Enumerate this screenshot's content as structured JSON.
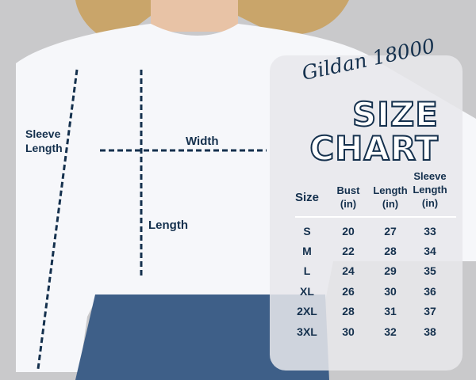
{
  "labels": {
    "sleeve_length": "Sleeve Length",
    "width": "Width",
    "length": "Length"
  },
  "chart": {
    "brand": "Gildan 18000",
    "title_line1": "SIZE",
    "title_line2": "CHART",
    "headers": [
      "Size",
      "Bust (in)",
      "Length (in)",
      "Sleeve Length (in)"
    ],
    "rows": [
      [
        "S",
        "20",
        "27",
        "33"
      ],
      [
        "M",
        "22",
        "28",
        "34"
      ],
      [
        "L",
        "24",
        "29",
        "35"
      ],
      [
        "XL",
        "26",
        "30",
        "36"
      ],
      [
        "2XL",
        "28",
        "31",
        "37"
      ],
      [
        "3XL",
        "30",
        "32",
        "38"
      ]
    ]
  },
  "colors": {
    "text": "#14304d",
    "background": "#c9c9cb",
    "sweatshirt": "#f6f7fa",
    "jeans": "#3e5f88"
  }
}
